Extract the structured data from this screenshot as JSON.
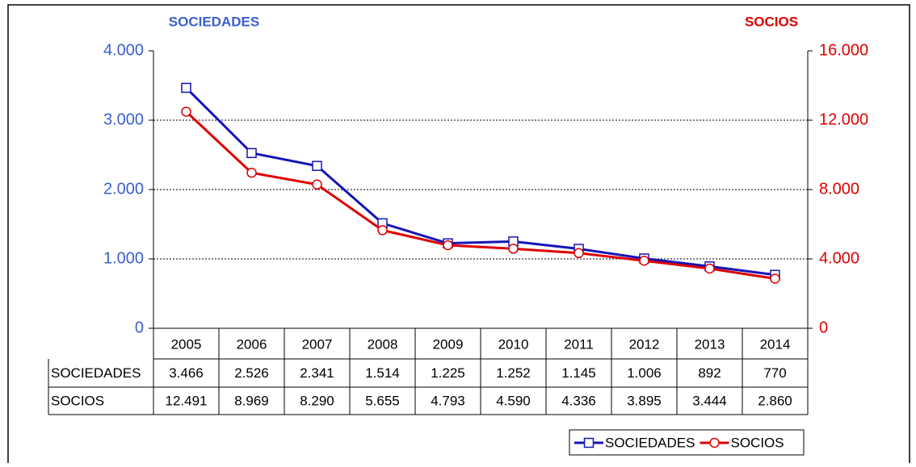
{
  "chart_data": {
    "type": "line",
    "ylabel": "SOCIEDADES",
    "y2label": "SOCIOS",
    "categories": [
      "2005",
      "2006",
      "2007",
      "2008",
      "2009",
      "2010",
      "2011",
      "2012",
      "2013",
      "2014"
    ],
    "series": [
      {
        "name": "SOCIEDADES",
        "color": "#1414b8",
        "marker": "square",
        "values": [
          3466,
          2526,
          2341,
          1514,
          1225,
          1252,
          1145,
          1006,
          892,
          770
        ],
        "value_labels": [
          "3.466",
          "2.526",
          "2.341",
          "1.514",
          "1.225",
          "1.252",
          "1.145",
          "1.006",
          "892",
          "770"
        ]
      },
      {
        "name": "SOCIOS",
        "color": "#dd0000",
        "marker": "circle",
        "axis": "y2",
        "values": [
          12491,
          8969,
          8290,
          5655,
          4793,
          4590,
          4336,
          3895,
          3444,
          2860
        ],
        "value_labels": [
          "12.491",
          "8.969",
          "8.290",
          "5.655",
          "4.793",
          "4.590",
          "4.336",
          "3.895",
          "3.444",
          "2.860"
        ]
      }
    ],
    "ylim": [
      0,
      4000
    ],
    "yticks": [
      0,
      {
        "value": 1000,
        "label": "1.000"
      },
      {
        "value": 2000,
        "label": "2.000"
      },
      {
        "value": 3000,
        "label": "3.000"
      },
      {
        "value": 4000,
        "label": "4.000"
      }
    ],
    "y2lim": [
      0,
      16000
    ],
    "y2ticks": [
      0,
      {
        "value": 4000,
        "label": "4.000"
      },
      {
        "value": 8000,
        "label": "8.000"
      },
      {
        "value": 12000,
        "label": "12.000"
      },
      {
        "value": 16000,
        "label": "16.000"
      }
    ],
    "grid": true,
    "legend": "lower right",
    "yaxis_color": "#3a5fcd",
    "y2axis_color": "#dd0000"
  }
}
